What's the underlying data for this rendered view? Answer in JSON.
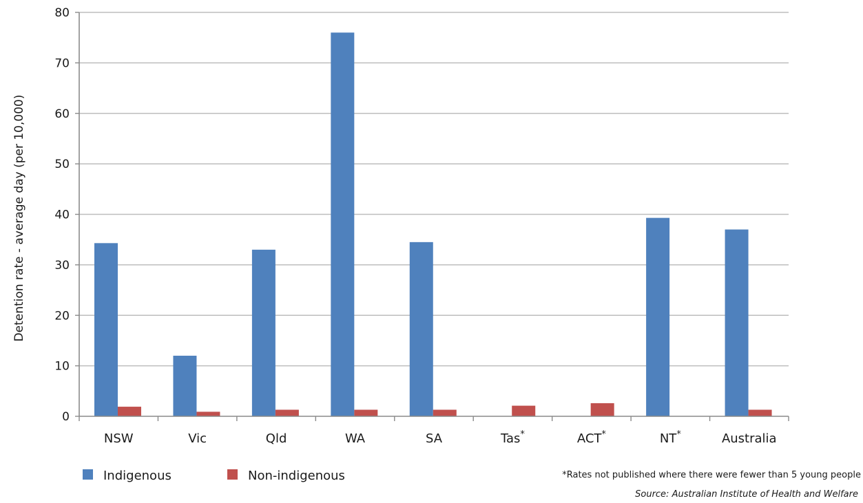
{
  "chart_data": {
    "type": "bar",
    "title": "",
    "xlabel": "",
    "ylabel": "Detention rate - average day (per 10,000)",
    "ylim": [
      0,
      80
    ],
    "yticks": [
      0,
      10,
      20,
      30,
      40,
      50,
      60,
      70,
      80
    ],
    "grid": true,
    "legend": "bottom-left",
    "categories": [
      {
        "base": "NSW",
        "marker": ""
      },
      {
        "base": "Vic",
        "marker": ""
      },
      {
        "base": "Qld",
        "marker": ""
      },
      {
        "base": "WA",
        "marker": ""
      },
      {
        "base": "SA",
        "marker": ""
      },
      {
        "base": "Tas",
        "marker": "*"
      },
      {
        "base": "ACT",
        "marker": "*"
      },
      {
        "base": "NT",
        "marker": "*"
      },
      {
        "base": "Australia",
        "marker": ""
      }
    ],
    "series": [
      {
        "name": "Indigenous",
        "color": "#4F81BD",
        "values": [
          34.3,
          12.0,
          33.0,
          76.0,
          34.5,
          null,
          null,
          39.3,
          37.0
        ]
      },
      {
        "name": "Non-indigenous",
        "color": "#C0504D",
        "values": [
          1.9,
          0.9,
          1.3,
          1.3,
          1.3,
          2.1,
          2.6,
          null,
          1.3
        ]
      }
    ],
    "footnote": "*Rates not published where there were fewer than 5 young people",
    "source": "Source: Australian Institute of Health and Welfare"
  }
}
